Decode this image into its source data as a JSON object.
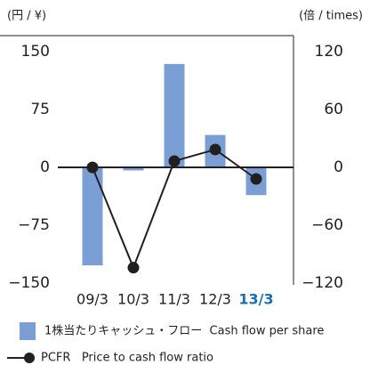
{
  "chart_data": {
    "type": "bar_line",
    "y_label": "(円 / ¥)",
    "y2_label": "(倍 / times)",
    "categories": [
      "09/3",
      "10/3",
      "11/3",
      "12/3",
      "13/3"
    ],
    "category_label_colors": [
      "#231f20",
      "#231f20",
      "#231f20",
      "#231f20",
      "#1a6fb5"
    ],
    "series": [
      {
        "name": "1株当たりキャッシュ・フロー  Cash flow per share",
        "type": "bar",
        "color": "#7b9fd4",
        "values": [
          -127,
          -4,
          134,
          42,
          -36
        ]
      },
      {
        "name": "PCFR   Price to cash flow ratio",
        "type": "line",
        "axis": "y2",
        "color": "#231f20",
        "values": [
          0,
          -104,
          6.5,
          18.5,
          -12
        ]
      }
    ],
    "ylim": [
      -150,
      150
    ],
    "yticks": [
      {
        "value": -150,
        "label": "−150"
      },
      {
        "value": -75,
        "label": "−75"
      },
      0,
      75,
      150
    ],
    "y2lim": [
      -120,
      120
    ],
    "y2ticks": [
      {
        "value": -120,
        "label": "−120"
      },
      {
        "value": -60,
        "label": "−60"
      },
      0,
      60,
      120
    ],
    "grid": false
  }
}
